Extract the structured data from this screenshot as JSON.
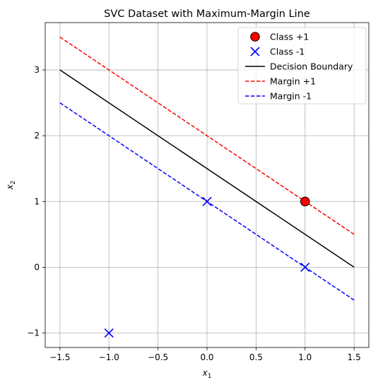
{
  "chart_data": {
    "type": "scatter",
    "title": "SVC Dataset with Maximum-Margin Line",
    "xlabel_main": "x",
    "xlabel_sub": "1",
    "ylabel_main": "x",
    "ylabel_sub": "2",
    "xlim": [
      -1.65,
      1.65
    ],
    "ylim": [
      -1.22,
      3.72
    ],
    "x_ticks": [
      -1.5,
      -1.0,
      -0.5,
      0.0,
      0.5,
      1.0,
      1.5
    ],
    "x_tick_labels": [
      "−1.5",
      "−1.0",
      "−0.5",
      "0.0",
      "0.5",
      "1.0",
      "1.5"
    ],
    "y_ticks": [
      -1,
      0,
      1,
      2,
      3
    ],
    "y_tick_labels": [
      "−1",
      "0",
      "1",
      "2",
      "3"
    ],
    "grid": true,
    "legend_position": "top-right",
    "points": [
      {
        "series": "Class +1",
        "marker": "circle",
        "color": "#ff0000",
        "x": 1.0,
        "y": 1.0
      },
      {
        "series": "Class -1",
        "marker": "x",
        "color": "#0000ff",
        "x": 0.0,
        "y": 1.0
      },
      {
        "series": "Class -1",
        "marker": "x",
        "color": "#0000ff",
        "x": 1.0,
        "y": 0.0
      },
      {
        "series": "Class -1",
        "marker": "x",
        "color": "#0000ff",
        "x": -1.0,
        "y": -1.0
      }
    ],
    "lines": [
      {
        "name": "Decision Boundary",
        "color": "#000000",
        "dash": "solid",
        "x": [
          -1.5,
          1.5
        ],
        "y": [
          3.0,
          0.0
        ]
      },
      {
        "name": "Margin +1",
        "color": "#ff0000",
        "dash": "dashed",
        "x": [
          -1.5,
          1.5
        ],
        "y": [
          3.5,
          0.5
        ]
      },
      {
        "name": "Margin -1",
        "color": "#0000ff",
        "dash": "dashed",
        "x": [
          -1.5,
          1.5
        ],
        "y": [
          2.5,
          -0.5
        ]
      }
    ],
    "legend": [
      {
        "label": "Class +1",
        "kind": "circle",
        "color": "#ff0000"
      },
      {
        "label": "Class -1",
        "kind": "x",
        "color": "#0000ff"
      },
      {
        "label": "Decision Boundary",
        "kind": "solid",
        "color": "#000000"
      },
      {
        "label": "Margin +1",
        "kind": "dashed",
        "color": "#ff0000"
      },
      {
        "label": "Margin -1",
        "kind": "dashed",
        "color": "#0000ff"
      }
    ]
  }
}
